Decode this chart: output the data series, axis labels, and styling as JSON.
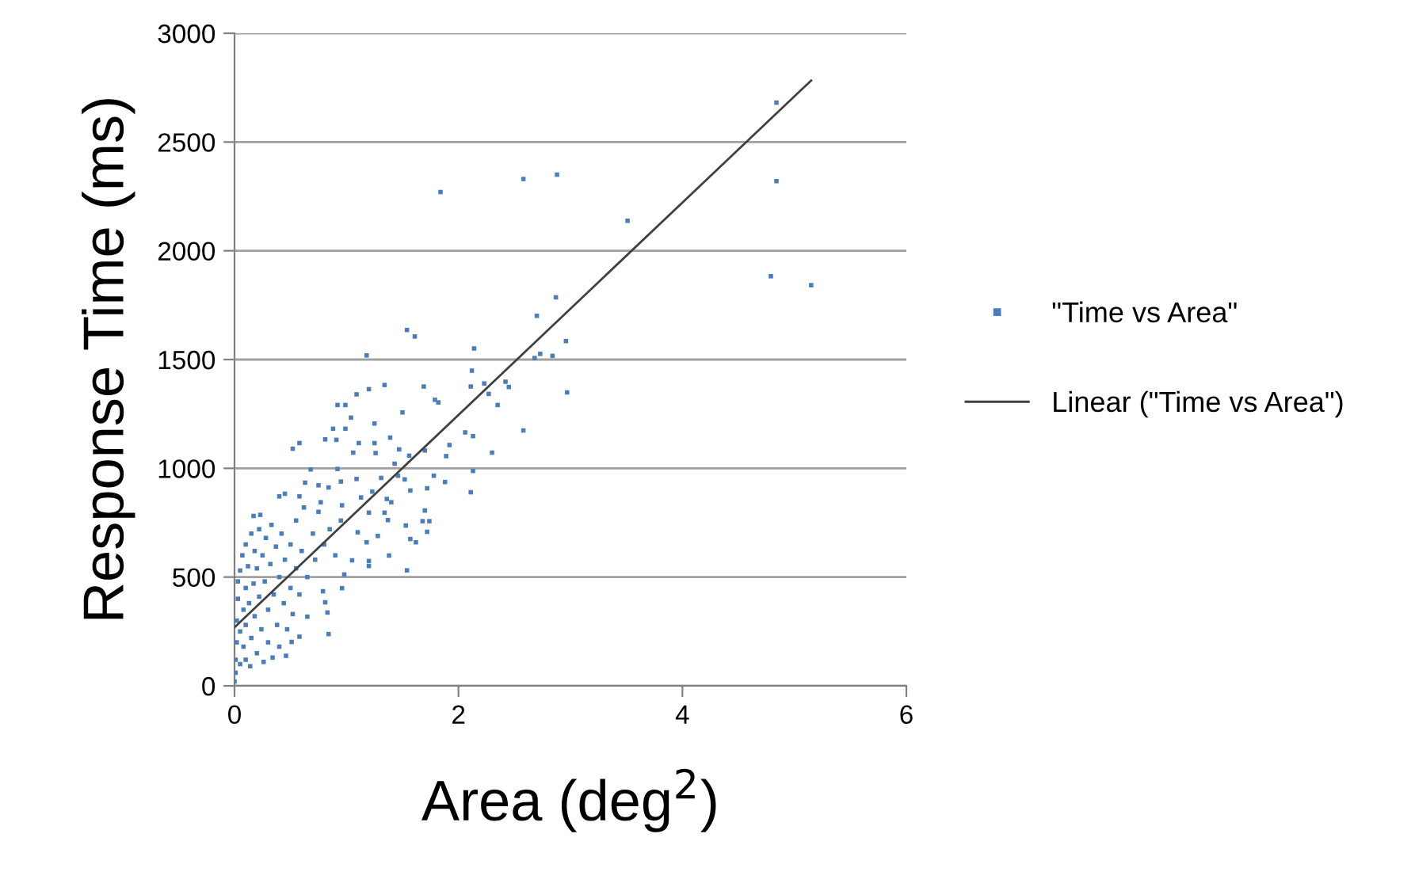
{
  "chart_data": {
    "type": "scatter",
    "xlabel": "Area (deg$^{2}$)",
    "ylabel": "Response Time (ms)",
    "xlim": [
      0,
      6
    ],
    "xticks": [
      0,
      2,
      4,
      6
    ],
    "ylim": [
      0,
      3000
    ],
    "yticks": [
      0,
      500,
      1000,
      1500,
      2000,
      2500,
      3000
    ],
    "grid": "y",
    "legend": "right",
    "marker": "square",
    "series": [
      {
        "name": "\"Time vs Area\"",
        "color": "#4a7ebb",
        "x": [
          0.0,
          0.01,
          0.01,
          0.02,
          0.02,
          0.03,
          0.03,
          0.05,
          0.05,
          0.05,
          0.07,
          0.08,
          0.08,
          0.1,
          0.1,
          0.1,
          0.1,
          0.12,
          0.13,
          0.14,
          0.15,
          0.15,
          0.17,
          0.18,
          0.18,
          0.2,
          0.2,
          0.22,
          0.22,
          0.24,
          0.25,
          0.26,
          0.27,
          0.28,
          0.3,
          0.3,
          0.32,
          0.33,
          0.34,
          0.35,
          0.37,
          0.38,
          0.4,
          0.4,
          0.42,
          0.44,
          0.45,
          0.47,
          0.5,
          0.5,
          0.52,
          0.55,
          0.55,
          0.58,
          0.6,
          0.62,
          0.65,
          0.7,
          0.72,
          0.75,
          0.8,
          0.85,
          0.9,
          0.95,
          0.17,
          0.23,
          0.45,
          0.4,
          0.58,
          0.46,
          0.51,
          0.58,
          0.65,
          0.84,
          0.83,
          0.81,
          0.79,
          0.96,
          0.98,
          1.05,
          1.2,
          1.2,
          1.18,
          1.1,
          1.28,
          1.54,
          1.38,
          1.57,
          1.62,
          1.72,
          1.68,
          1.74,
          1.7,
          1.53,
          1.37,
          1.34,
          1.2,
          1.4,
          1.36,
          1.23,
          1.13,
          0.96,
          0.77,
          0.84,
          0.63,
          0.75,
          0.95,
          1.09,
          1.31,
          1.46,
          1.52,
          1.57,
          1.72,
          0.68,
          0.92,
          1.43,
          1.06,
          1.26,
          1.47,
          1.56,
          1.7,
          1.11,
          1.25,
          1.39,
          0.58,
          0.52,
          0.81,
          0.91,
          0.88,
          0.99,
          1.25,
          1.04,
          0.92,
          0.99,
          1.09,
          1.2,
          1.34,
          1.5,
          1.69,
          1.79,
          1.82,
          1.78,
          1.88,
          1.89,
          1.92,
          2.11,
          2.13,
          2.13,
          2.06,
          2.11,
          2.3,
          2.58,
          2.45,
          2.42,
          2.35,
          2.27,
          2.23,
          2.12,
          2.14,
          1.61,
          1.54,
          1.18,
          2.7,
          2.87,
          2.96,
          2.97,
          2.73,
          2.84,
          2.68,
          1.84,
          2.58,
          2.88,
          3.51,
          4.84,
          4.84,
          4.79,
          5.15
        ],
        "values": [
          20,
          60,
          120,
          200,
          300,
          400,
          480,
          530,
          100,
          250,
          600,
          350,
          180,
          650,
          450,
          280,
          120,
          550,
          380,
          90,
          700,
          220,
          470,
          620,
          320,
          150,
          540,
          720,
          410,
          260,
          600,
          110,
          480,
          680,
          350,
          200,
          560,
          740,
          130,
          420,
          640,
          280,
          500,
          180,
          700,
          380,
          580,
          260,
          650,
          450,
          330,
          760,
          540,
          420,
          620,
          820,
          500,
          700,
          580,
          800,
          650,
          720,
          600,
          760,
          781,
          786,
          883,
          871,
          871,
          138,
          202,
          226,
          318,
          238,
          337,
          384,
          435,
          449,
          512,
          577,
          551,
          574,
          660,
          706,
          689,
          531,
          599,
          675,
          660,
          708,
          757,
          757,
          806,
          737,
          762,
          796,
          796,
          844,
          859,
          893,
          866,
          830,
          844,
          912,
          934,
          922,
          939,
          951,
          956,
          966,
          949,
          898,
          908,
          995,
          997,
          1021,
          1072,
          1070,
          1087,
          1058,
          1082,
          1116,
          1116,
          1141,
          1116,
          1090,
          1133,
          1131,
          1182,
          1182,
          1206,
          1233,
          1291,
          1291,
          1340,
          1364,
          1383,
          1257,
          1376,
          1315,
          1303,
          966,
          937,
          1056,
          1107,
          890,
          988,
          1148,
          1165,
          1376,
          1072,
          1174,
          1374,
          1398,
          1291,
          1342,
          1390,
          1449,
          1551,
          1606,
          1636,
          1519,
          1701,
          1786,
          1585,
          1349,
          1526,
          1517,
          1507,
          2270,
          2330,
          2350,
          2138,
          2681,
          2320,
          1883,
          1842
        ]
      },
      {
        "name": "Linear (\"Time vs Area\")",
        "color": "#404040",
        "type": "line",
        "marker": "none",
        "x": [
          0,
          5.15
        ],
        "values": [
          269,
          2783
        ]
      }
    ]
  }
}
